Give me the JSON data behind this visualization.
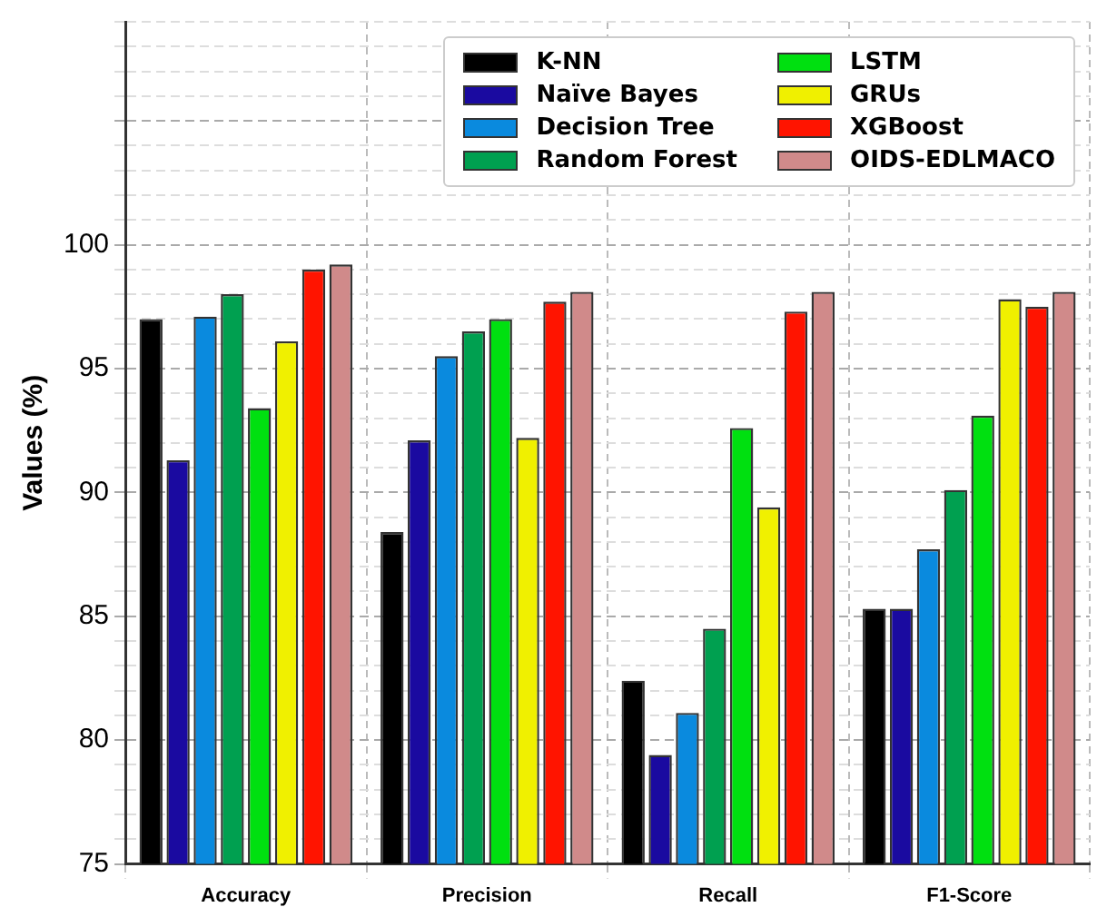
{
  "chart_data": {
    "type": "bar",
    "ylabel": "Values (%)",
    "categories": [
      "Accuracy",
      "Precision",
      "Recall",
      "F1-Score"
    ],
    "series": [
      {
        "name": "K-NN",
        "color": "#000000",
        "values": [
          97.0,
          88.4,
          82.4,
          85.3
        ]
      },
      {
        "name": "Naïve Bayes",
        "color": "#1a0aa0",
        "values": [
          91.3,
          92.1,
          79.4,
          85.3
        ]
      },
      {
        "name": "Decision Tree",
        "color": "#0a8ade",
        "values": [
          97.1,
          95.5,
          81.1,
          87.7
        ]
      },
      {
        "name": "Random Forest",
        "color": "#00a050",
        "values": [
          98.0,
          96.5,
          84.5,
          90.1
        ]
      },
      {
        "name": "LSTM",
        "color": "#00e010",
        "values": [
          93.4,
          97.0,
          92.6,
          93.1
        ]
      },
      {
        "name": "GRUs",
        "color": "#f0f000",
        "values": [
          96.1,
          92.2,
          89.4,
          97.8
        ]
      },
      {
        "name": "XGBoost",
        "color": "#ff1400",
        "values": [
          99.0,
          97.7,
          97.3,
          97.5
        ]
      },
      {
        "name": "OIDS-EDLMACO",
        "color": "#d08a8a",
        "values": [
          99.2,
          98.1,
          98.1,
          98.1
        ]
      }
    ],
    "ylim": [
      75,
      109
    ],
    "yticks": [
      75,
      80,
      85,
      90,
      95,
      100,
      {
        "value": 105,
        "label": null
      }
    ],
    "grid": true,
    "legend": "top right"
  }
}
